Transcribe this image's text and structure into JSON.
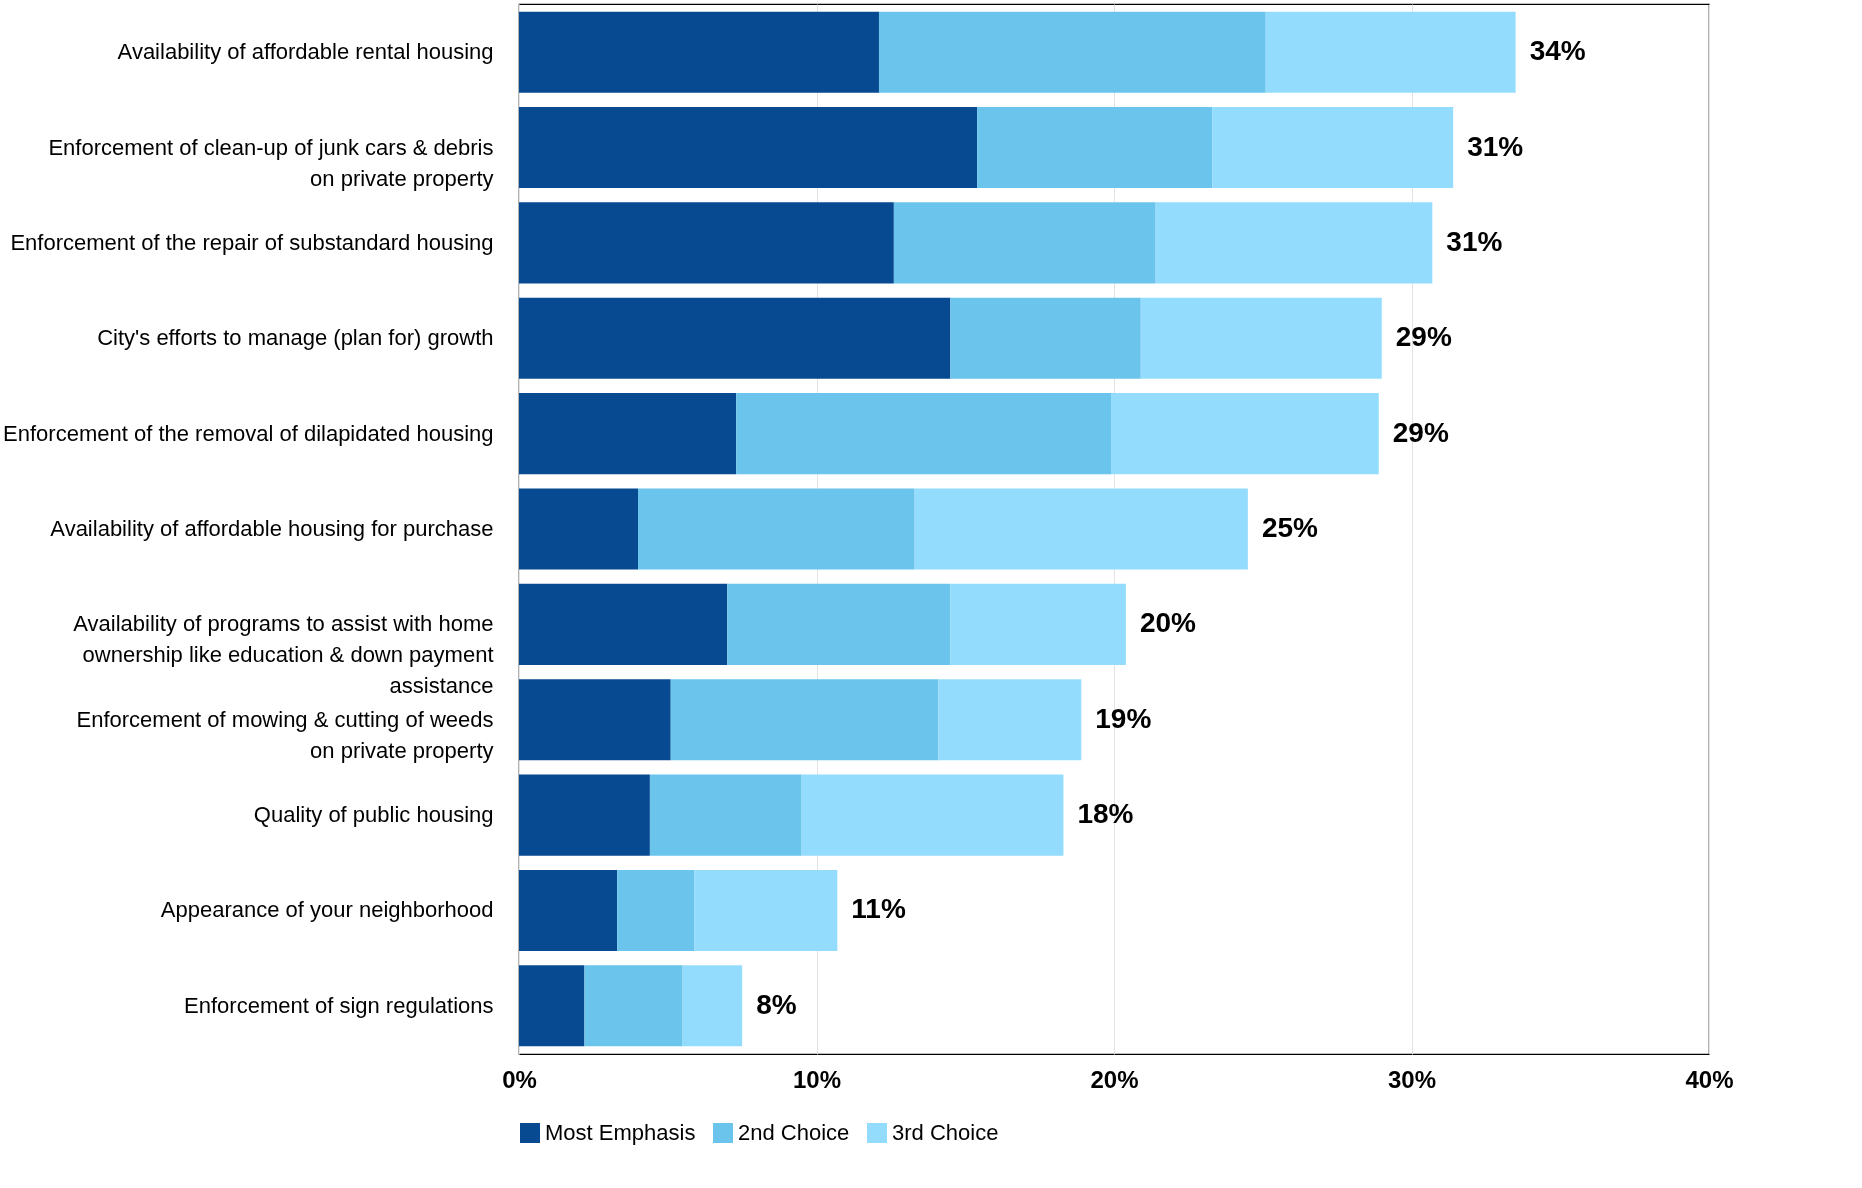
{
  "chart_data": {
    "type": "bar",
    "orientation": "horizontal",
    "stacked": true,
    "categories": [
      "Availability of affordable rental housing",
      "Enforcement of clean-up of junk cars & debris\non private property",
      "Enforcement of the repair of substandard housing",
      "City's efforts to manage (plan for) growth",
      "Enforcement of the removal of dilapidated housing",
      "Availability of affordable housing for purchase",
      "Availability of programs to assist with home\nownership like education & down payment\nassistance",
      "Enforcement of mowing & cutting of weeds\non private property",
      "Quality of public housing",
      "Appearance of your neighborhood",
      "Enforcement of sign regulations"
    ],
    "series": [
      {
        "name": "Most Emphasis",
        "color": "#084a91",
        "values": [
          12.1,
          15.4,
          12.6,
          14.5,
          7.3,
          4.0,
          7.0,
          5.1,
          4.4,
          3.3,
          2.2
        ]
      },
      {
        "name": "2nd Choice",
        "color": "#6ac4ec",
        "values": [
          13.0,
          7.9,
          8.8,
          6.4,
          12.6,
          9.3,
          7.5,
          9.0,
          5.1,
          2.6,
          3.3
        ]
      },
      {
        "name": "3rd Choice",
        "color": "#93dcfd",
        "values": [
          8.4,
          8.1,
          9.3,
          8.1,
          9.0,
          11.2,
          5.9,
          4.8,
          8.8,
          4.8,
          2.0
        ]
      }
    ],
    "totals": [
      "34%",
      "31%",
      "31%",
      "29%",
      "29%",
      "25%",
      "20%",
      "19%",
      "18%",
      "11%",
      "8%"
    ],
    "xlim": [
      0,
      40
    ],
    "xticks": [
      {
        "value": 0,
        "label": "0%"
      },
      {
        "value": 10,
        "label": "10%"
      },
      {
        "value": 20,
        "label": "20%"
      },
      {
        "value": 30,
        "label": "30%"
      },
      {
        "value": 40,
        "label": "40%"
      }
    ],
    "grid": "x",
    "legend": "bottom"
  }
}
